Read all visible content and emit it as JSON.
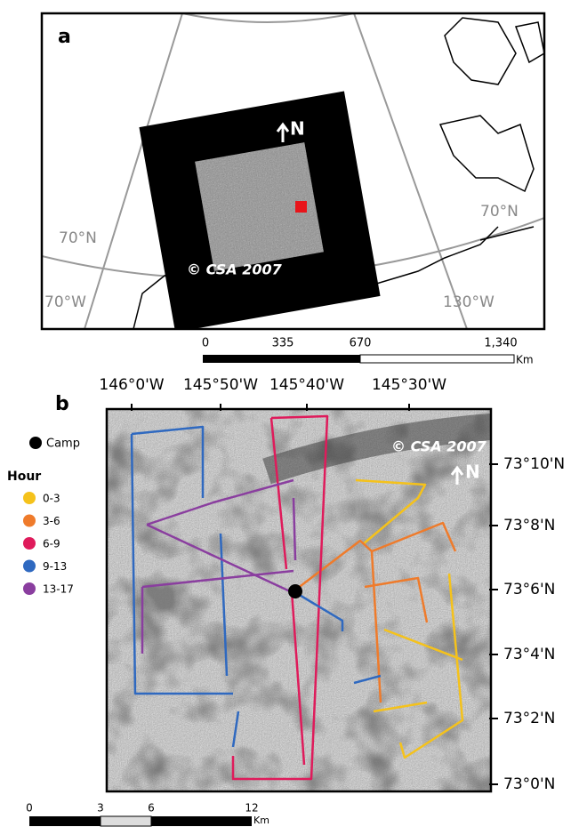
{
  "panel_a": {
    "label": "a",
    "north": "N",
    "copyright": "© CSA 2007",
    "lat_labels": [
      "70°N",
      "70°N"
    ],
    "lon_labels": [
      "70°W",
      "130°W"
    ],
    "scale": {
      "ticks": [
        "0",
        "335",
        "670",
        "1,340"
      ],
      "unit": "Km"
    }
  },
  "panel_b": {
    "label": "b",
    "lon_labels": [
      "146°0'W",
      "145°50'W",
      "145°40'W",
      "145°30'W"
    ],
    "lat_labels": [
      "73°10'N",
      "73°8'N",
      "73°6'N",
      "73°4'N",
      "73°2'N",
      "73°0'N"
    ],
    "copyright": "© CSA 2007",
    "north": "N",
    "legend": {
      "camp": "Camp",
      "title": "Hour",
      "items": [
        {
          "label": "0-3",
          "color": "#f5c21b"
        },
        {
          "label": "3-6",
          "color": "#ef7b2b"
        },
        {
          "label": "6-9",
          "color": "#df1b5b"
        },
        {
          "label": "9-13",
          "color": "#2f69c0"
        },
        {
          "label": "13-17",
          "color": "#8a3e9f"
        }
      ]
    },
    "scale": {
      "ticks": [
        "0",
        "3",
        "6",
        "12"
      ],
      "unit": "Km"
    }
  }
}
